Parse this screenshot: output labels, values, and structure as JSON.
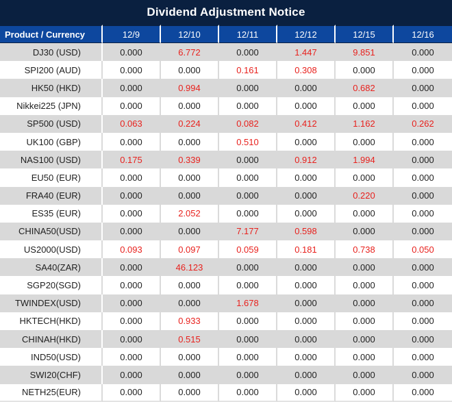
{
  "title": "Dividend Adjustment Notice",
  "colors": {
    "title_bg": "#0a2040",
    "header_bg": "#0d479e",
    "row_alt_bg": "#d9d9d9",
    "red_text": "#e8211d",
    "dark_text": "#1f1f1f",
    "grid_line": "#dadada"
  },
  "table": {
    "product_header": "Product / Currency",
    "date_headers": [
      "12/9",
      "12/10",
      "12/11",
      "12/12",
      "12/15",
      "12/16"
    ],
    "rows": [
      {
        "product": "DJ30 (USD)",
        "values": [
          "0.000",
          "6.772",
          "0.000",
          "1.447",
          "9.851",
          "0.000"
        ],
        "red": [
          false,
          true,
          false,
          true,
          true,
          false
        ]
      },
      {
        "product": "SPI200 (AUD)",
        "values": [
          "0.000",
          "0.000",
          "0.161",
          "0.308",
          "0.000",
          "0.000"
        ],
        "red": [
          false,
          false,
          true,
          true,
          false,
          false
        ]
      },
      {
        "product": "HK50 (HKD)",
        "values": [
          "0.000",
          "0.994",
          "0.000",
          "0.000",
          "0.682",
          "0.000"
        ],
        "red": [
          false,
          true,
          false,
          false,
          true,
          false
        ]
      },
      {
        "product": "Nikkei225 (JPN)",
        "values": [
          "0.000",
          "0.000",
          "0.000",
          "0.000",
          "0.000",
          "0.000"
        ],
        "red": [
          false,
          false,
          false,
          false,
          false,
          false
        ]
      },
      {
        "product": "SP500 (USD)",
        "values": [
          "0.063",
          "0.224",
          "0.082",
          "0.412",
          "1.162",
          "0.262"
        ],
        "red": [
          true,
          true,
          true,
          true,
          true,
          true
        ]
      },
      {
        "product": "UK100 (GBP)",
        "values": [
          "0.000",
          "0.000",
          "0.510",
          "0.000",
          "0.000",
          "0.000"
        ],
        "red": [
          false,
          false,
          true,
          false,
          false,
          false
        ]
      },
      {
        "product": "NAS100 (USD)",
        "values": [
          "0.175",
          "0.339",
          "0.000",
          "0.912",
          "1.994",
          "0.000"
        ],
        "red": [
          true,
          true,
          false,
          true,
          true,
          false
        ]
      },
      {
        "product": "EU50 (EUR)",
        "values": [
          "0.000",
          "0.000",
          "0.000",
          "0.000",
          "0.000",
          "0.000"
        ],
        "red": [
          false,
          false,
          false,
          false,
          false,
          false
        ]
      },
      {
        "product": "FRA40 (EUR)",
        "values": [
          "0.000",
          "0.000",
          "0.000",
          "0.000",
          "0.220",
          "0.000"
        ],
        "red": [
          false,
          false,
          false,
          false,
          true,
          false
        ]
      },
      {
        "product": "ES35 (EUR)",
        "values": [
          "0.000",
          "2.052",
          "0.000",
          "0.000",
          "0.000",
          "0.000"
        ],
        "red": [
          false,
          true,
          false,
          false,
          false,
          false
        ]
      },
      {
        "product": "CHINA50(USD)",
        "values": [
          "0.000",
          "0.000",
          "7.177",
          "0.598",
          "0.000",
          "0.000"
        ],
        "red": [
          false,
          false,
          true,
          true,
          false,
          false
        ]
      },
      {
        "product": "US2000(USD)",
        "values": [
          "0.093",
          "0.097",
          "0.059",
          "0.181",
          "0.738",
          "0.050"
        ],
        "red": [
          true,
          true,
          true,
          true,
          true,
          true
        ]
      },
      {
        "product": "SA40(ZAR)",
        "values": [
          "0.000",
          "46.123",
          "0.000",
          "0.000",
          "0.000",
          "0.000"
        ],
        "red": [
          false,
          true,
          false,
          false,
          false,
          false
        ]
      },
      {
        "product": "SGP20(SGD)",
        "values": [
          "0.000",
          "0.000",
          "0.000",
          "0.000",
          "0.000",
          "0.000"
        ],
        "red": [
          false,
          false,
          false,
          false,
          false,
          false
        ]
      },
      {
        "product": "TWINDEX(USD)",
        "values": [
          "0.000",
          "0.000",
          "1.678",
          "0.000",
          "0.000",
          "0.000"
        ],
        "red": [
          false,
          false,
          true,
          false,
          false,
          false
        ]
      },
      {
        "product": "HKTECH(HKD)",
        "values": [
          "0.000",
          "0.933",
          "0.000",
          "0.000",
          "0.000",
          "0.000"
        ],
        "red": [
          false,
          true,
          false,
          false,
          false,
          false
        ]
      },
      {
        "product": "CHINAH(HKD)",
        "values": [
          "0.000",
          "0.515",
          "0.000",
          "0.000",
          "0.000",
          "0.000"
        ],
        "red": [
          false,
          true,
          false,
          false,
          false,
          false
        ]
      },
      {
        "product": "IND50(USD)",
        "values": [
          "0.000",
          "0.000",
          "0.000",
          "0.000",
          "0.000",
          "0.000"
        ],
        "red": [
          false,
          false,
          false,
          false,
          false,
          false
        ]
      },
      {
        "product": "SWI20(CHF)",
        "values": [
          "0.000",
          "0.000",
          "0.000",
          "0.000",
          "0.000",
          "0.000"
        ],
        "red": [
          false,
          false,
          false,
          false,
          false,
          false
        ]
      },
      {
        "product": "NETH25(EUR)",
        "values": [
          "0.000",
          "0.000",
          "0.000",
          "0.000",
          "0.000",
          "0.000"
        ],
        "red": [
          false,
          false,
          false,
          false,
          false,
          false
        ]
      }
    ]
  }
}
